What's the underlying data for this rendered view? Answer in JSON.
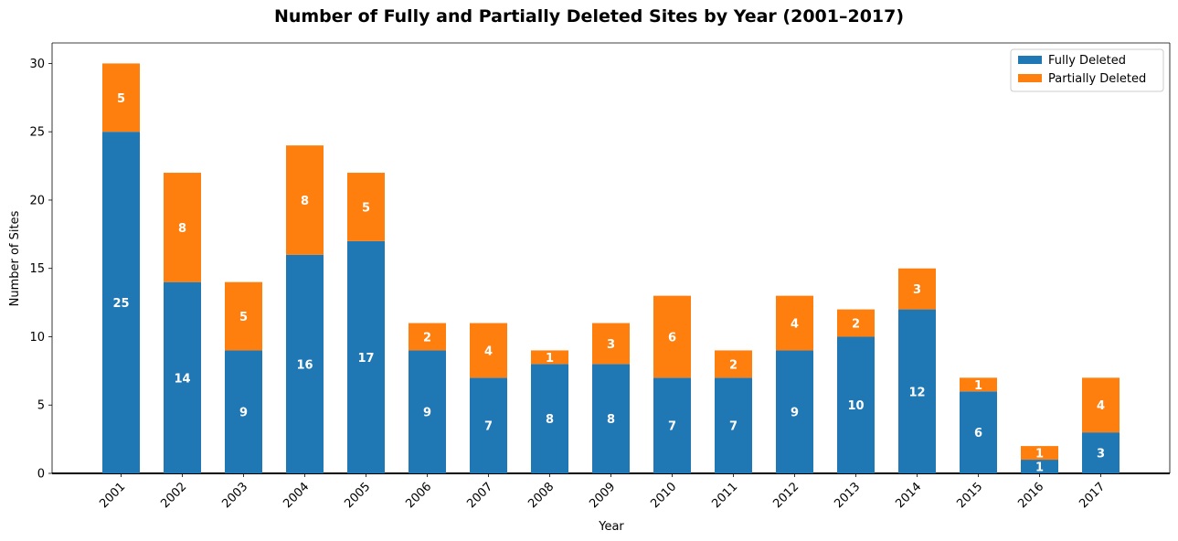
{
  "chart_data": {
    "type": "bar",
    "stacked": true,
    "title": "Number of Fully and Partially Deleted Sites by Year (2001–2017)",
    "xlabel": "Year",
    "ylabel": "Number of Sites",
    "ylim": [
      0,
      31.5
    ],
    "yticks": [
      0,
      5,
      10,
      15,
      20,
      25,
      30
    ],
    "categories": [
      "2001",
      "2002",
      "2003",
      "2004",
      "2005",
      "2006",
      "2007",
      "2008",
      "2009",
      "2010",
      "2011",
      "2012",
      "2013",
      "2014",
      "2015",
      "2016",
      "2017"
    ],
    "series": [
      {
        "name": "Fully Deleted",
        "color": "#1f77b4",
        "values": [
          25,
          14,
          9,
          16,
          17,
          9,
          7,
          8,
          8,
          7,
          7,
          9,
          10,
          12,
          6,
          1,
          3
        ]
      },
      {
        "name": "Partially Deleted",
        "color": "#ff7f0e",
        "values": [
          5,
          8,
          5,
          8,
          5,
          2,
          4,
          1,
          3,
          6,
          2,
          4,
          2,
          3,
          1,
          1,
          4
        ]
      }
    ],
    "legend": "top-right",
    "grid": false
  }
}
